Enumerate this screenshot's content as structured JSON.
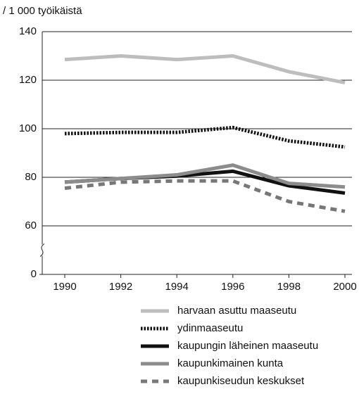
{
  "chart_data": {
    "type": "line",
    "y_label": "/ 1 000 työikäistä",
    "x": [
      1990,
      1992,
      1994,
      1996,
      1998,
      2000
    ],
    "xticks": [
      1990,
      1992,
      1994,
      1996,
      1998,
      2000
    ],
    "xlim": [
      1990,
      2000
    ],
    "ylim": [
      0,
      140
    ],
    "yticks": [
      0,
      60,
      80,
      100,
      120,
      140
    ],
    "ybreak": [
      0,
      60
    ],
    "grid": true,
    "series": [
      {
        "name": "harvaan asuttu maaseutu",
        "color": "#bdbdbd",
        "dash": "solid",
        "values": [
          128.5,
          130,
          128.5,
          130,
          123.5,
          119
        ]
      },
      {
        "name": "ydinmaaseutu",
        "color": "#111111",
        "dash": "dotted",
        "values": [
          98,
          98.5,
          98.5,
          100.5,
          95,
          92.5
        ]
      },
      {
        "name": "kaupungin läheinen maaseutu",
        "color": "#111111",
        "dash": "solid",
        "values": [
          78,
          79.5,
          80.5,
          82.5,
          76.5,
          73.5
        ]
      },
      {
        "name": "kaupunkimainen kunta",
        "color": "#8c8c8c",
        "dash": "solid",
        "values": [
          78,
          79.5,
          81,
          85,
          77.5,
          76
        ]
      },
      {
        "name": "kaupunkiseudun keskukset",
        "color": "#777777",
        "dash": "dashed",
        "values": [
          75.5,
          78,
          78.5,
          78.5,
          70,
          66
        ]
      }
    ]
  }
}
